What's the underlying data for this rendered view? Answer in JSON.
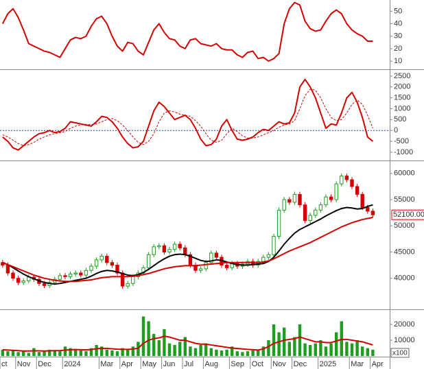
{
  "chart_data": [
    {
      "type": "line",
      "ylim": [
        4,
        59
      ],
      "yticks": [
        10,
        20,
        30,
        40,
        50
      ],
      "series": [
        {
          "color": "#d40000",
          "values": [
            40,
            48,
            52,
            45,
            35,
            24,
            22,
            20,
            18,
            17,
            15,
            13,
            20,
            27,
            29,
            28,
            30,
            38,
            44,
            46,
            40,
            30,
            22,
            18,
            25,
            24,
            18,
            15,
            25,
            35,
            40,
            33,
            28,
            27,
            22,
            20,
            27,
            28,
            24,
            23,
            22,
            24,
            20,
            19,
            19,
            15,
            13,
            17,
            18,
            12,
            13,
            10,
            12,
            16,
            40,
            52,
            57,
            55,
            42,
            36,
            34,
            35,
            42,
            48,
            51,
            48,
            40,
            35,
            32,
            30,
            26,
            26
          ]
        }
      ]
    },
    {
      "type": "line",
      "ylim": [
        -1350,
        2750
      ],
      "yticks": [
        -1000,
        -500,
        0,
        500,
        1000,
        1500,
        2000,
        2500
      ],
      "zero_line": true,
      "series": [
        {
          "color": "#d40000",
          "values": [
            -300,
            -500,
            -800,
            -900,
            -700,
            -500,
            -300,
            -150,
            -100,
            0,
            -100,
            -50,
            100,
            400,
            350,
            300,
            250,
            200,
            400,
            650,
            600,
            400,
            100,
            -300,
            -600,
            -800,
            -750,
            -500,
            200,
            900,
            1300,
            1100,
            800,
            500,
            600,
            700,
            500,
            100,
            -400,
            -700,
            -650,
            -400,
            200,
            500,
            0,
            -400,
            -450,
            -400,
            -300,
            -100,
            50,
            0,
            200,
            400,
            300,
            350,
            800,
            2000,
            2350,
            2000,
            1500,
            800,
            100,
            300,
            250,
            800,
            1500,
            1750,
            1300,
            600,
            -300,
            -500
          ]
        },
        {
          "color": "#d40000",
          "dashed": true,
          "values": [
            -200,
            -300,
            -450,
            -600,
            -700,
            -650,
            -550,
            -400,
            -300,
            -200,
            -150,
            -100,
            -50,
            100,
            200,
            250,
            280,
            270,
            300,
            400,
            500,
            550,
            450,
            250,
            0,
            -300,
            -550,
            -650,
            -500,
            -150,
            400,
            800,
            900,
            850,
            750,
            700,
            650,
            450,
            200,
            -150,
            -450,
            -550,
            -450,
            -150,
            100,
            -50,
            -250,
            -350,
            -350,
            -300,
            -200,
            -100,
            0,
            150,
            250,
            300,
            450,
            1000,
            1600,
            1900,
            1850,
            1500,
            1000,
            600,
            450,
            500,
            800,
            1200,
            1400,
            1200,
            700,
            100
          ]
        }
      ]
    },
    {
      "type": "candlestick",
      "ylim": [
        34200,
        62200
      ],
      "yticks": [
        40000,
        45000,
        50000,
        55000,
        60000
      ],
      "up_color": "#1e9e1e",
      "down_color": "#d40000",
      "open": [
        43000,
        42500,
        41000,
        40000,
        39200,
        39500,
        40200,
        39800,
        39000,
        38600,
        39200,
        39800,
        40500,
        40300,
        40800,
        41000,
        40600,
        41500,
        42300,
        43500,
        44200,
        43000,
        42500,
        41000,
        38500,
        39000,
        40300,
        41000,
        42000,
        44500,
        46000,
        46200,
        45000,
        45500,
        46500,
        45800,
        44500,
        42500,
        41500,
        41800,
        43000,
        44800,
        44000,
        42500,
        42000,
        42800,
        42300,
        42700,
        43200,
        42500,
        43200,
        44000,
        44500,
        48000,
        53000,
        55000,
        54500,
        56000,
        54000,
        51000,
        52000,
        53000,
        54000,
        55500,
        55000,
        58000,
        59500,
        58800,
        57500,
        56000,
        53500,
        52800
      ],
      "high": [
        43500,
        43000,
        41500,
        40500,
        40000,
        40700,
        40700,
        40300,
        39500,
        39700,
        40300,
        41000,
        41000,
        41300,
        41500,
        41500,
        42000,
        42800,
        44000,
        44700,
        44700,
        43500,
        43000,
        41500,
        39500,
        40800,
        41500,
        42500,
        45000,
        46500,
        46700,
        46700,
        46000,
        47000,
        47000,
        46300,
        45000,
        43000,
        42300,
        43500,
        45300,
        45300,
        44500,
        43000,
        43300,
        43300,
        43200,
        43700,
        43700,
        43700,
        44500,
        45000,
        48500,
        53500,
        55500,
        55500,
        56500,
        56500,
        54500,
        52500,
        53500,
        54500,
        56000,
        56000,
        58500,
        60000,
        60000,
        59300,
        58000,
        56500,
        54000,
        53300
      ],
      "low": [
        42000,
        40500,
        39500,
        38700,
        38700,
        39000,
        39300,
        38500,
        38100,
        38100,
        38700,
        39300,
        39800,
        39800,
        40300,
        40100,
        40100,
        41000,
        41800,
        43000,
        42500,
        42000,
        40500,
        38000,
        38000,
        38500,
        39800,
        40500,
        41500,
        44000,
        45500,
        44500,
        44500,
        45000,
        45300,
        44000,
        42000,
        41000,
        41000,
        41300,
        42500,
        43500,
        42000,
        41500,
        41500,
        41800,
        41800,
        42200,
        42000,
        42000,
        42700,
        43500,
        44000,
        47500,
        52500,
        54000,
        54000,
        53500,
        50500,
        50500,
        51500,
        52500,
        53500,
        54500,
        54500,
        57500,
        58300,
        57000,
        55500,
        53000,
        52300,
        51600
      ],
      "close": [
        42500,
        41000,
        40000,
        39200,
        39500,
        40200,
        39800,
        39000,
        38600,
        39200,
        39800,
        40500,
        40300,
        40800,
        41000,
        40600,
        41500,
        42300,
        43500,
        44200,
        43000,
        42500,
        41000,
        38500,
        39000,
        40300,
        41000,
        42000,
        44500,
        46000,
        46200,
        45000,
        45500,
        46500,
        45800,
        44500,
        42500,
        41500,
        41800,
        43000,
        44800,
        44000,
        42500,
        42000,
        42800,
        42300,
        42700,
        43200,
        42500,
        43200,
        44000,
        44500,
        48000,
        53000,
        55000,
        54500,
        56000,
        54000,
        51000,
        52000,
        53000,
        54000,
        55500,
        55000,
        58000,
        59500,
        58800,
        57500,
        56000,
        53500,
        52800,
        52100
      ],
      "series": [
        {
          "color": "#000000",
          "values": [
            43000,
            42600,
            42000,
            41400,
            40800,
            40300,
            39900,
            39500,
            39200,
            39000,
            38900,
            39000,
            39200,
            39400,
            39600,
            39800,
            40000,
            40400,
            40900,
            41300,
            41500,
            41400,
            41200,
            40900,
            40600,
            40500,
            40700,
            41100,
            41700,
            42400,
            43100,
            43700,
            44200,
            44500,
            44600,
            44500,
            44200,
            43800,
            43400,
            43200,
            43300,
            43500,
            43400,
            43100,
            42800,
            42600,
            42500,
            42500,
            42600,
            42700,
            42800,
            43200,
            44000,
            45200,
            46500,
            47600,
            48600,
            49300,
            49800,
            50300,
            50800,
            51300,
            51900,
            52400,
            52900,
            53300,
            53500,
            53400,
            53200,
            53300,
            53700,
            54000
          ]
        },
        {
          "color": "#d40000",
          "values": [
            43000,
            42600,
            42200,
            41800,
            41400,
            41000,
            40600,
            40300,
            40000,
            39800,
            39600,
            39500,
            39400,
            39400,
            39400,
            39500,
            39600,
            39700,
            39900,
            40100,
            40200,
            40300,
            40300,
            40300,
            40300,
            40400,
            40500,
            40700,
            40900,
            41200,
            41500,
            41800,
            42000,
            42200,
            42300,
            42400,
            42400,
            42400,
            42500,
            42600,
            42700,
            42800,
            42900,
            43000,
            43000,
            43000,
            43000,
            43000,
            43000,
            43000,
            43100,
            43300,
            43700,
            44200,
            44700,
            45200,
            45600,
            46000,
            46400,
            46800,
            47300,
            47800,
            48300,
            48800,
            49300,
            49800,
            50200,
            50600,
            50900,
            51200,
            51400,
            51600
          ]
        }
      ],
      "last_price": {
        "value": 52100,
        "label": "52100.00"
      }
    },
    {
      "type": "bar",
      "ylim": [
        -400,
        29100
      ],
      "yticks": [
        10000,
        20000
      ],
      "unit_label": "x100",
      "color": "#1e9e1e",
      "categories": [
        "ct",
        null,
        null,
        "Nov",
        null,
        null,
        null,
        "Dec",
        null,
        null,
        null,
        null,
        "2024",
        null,
        null,
        null,
        null,
        null,
        null,
        "Mar",
        null,
        null,
        null,
        "Apr",
        null,
        null,
        null,
        "May",
        null,
        null,
        null,
        "Jun",
        null,
        null,
        null,
        "Jul",
        null,
        null,
        null,
        "Aug",
        null,
        null,
        null,
        null,
        "Sep",
        null,
        null,
        null,
        "Oct",
        null,
        null,
        null,
        "Nov",
        null,
        null,
        null,
        "Dec",
        null,
        null,
        null,
        null,
        "2025",
        null,
        null,
        null,
        null,
        null,
        "Mar",
        null,
        null,
        null,
        "Apr"
      ],
      "values": [
        4000,
        3000,
        3500,
        2500,
        3000,
        2000,
        5000,
        2500,
        3000,
        4000,
        3500,
        3000,
        6000,
        5000,
        4000,
        3500,
        3000,
        5000,
        7000,
        6000,
        4000,
        3500,
        3000,
        5000,
        4000,
        6000,
        9000,
        25000,
        22000,
        14000,
        10000,
        17000,
        8000,
        7000,
        9000,
        12000,
        6000,
        5000,
        7000,
        8000,
        5000,
        4000,
        3500,
        4000,
        6000,
        3000,
        2500,
        3000,
        3500,
        4000,
        6000,
        10000,
        20000,
        15000,
        18000,
        9000,
        12000,
        20000,
        8000,
        7000,
        8000,
        10000,
        6000,
        8000,
        15000,
        22000,
        9000,
        8000,
        10000,
        6000,
        5000,
        4000
      ],
      "series": [
        {
          "color": "#d40000",
          "values": [
            4000,
            3800,
            3600,
            3400,
            3200,
            3200,
            3300,
            3300,
            3200,
            3300,
            3400,
            3400,
            3800,
            4000,
            4100,
            4000,
            3900,
            4100,
            4600,
            4900,
            4800,
            4600,
            4300,
            4200,
            4200,
            4400,
            5000,
            8000,
            10000,
            11000,
            11500,
            12500,
            12000,
            11000,
            10000,
            10000,
            9000,
            8000,
            7500,
            7500,
            7000,
            6500,
            6000,
            5500,
            5000,
            4800,
            4500,
            4200,
            4000,
            3800,
            4500,
            6000,
            8000,
            9000,
            10000,
            10500,
            11000,
            12000,
            11000,
            10000,
            9000,
            9000,
            8500,
            8500,
            9500,
            10500,
            10500,
            10000,
            9500,
            9000,
            8000,
            7000
          ]
        }
      ]
    }
  ]
}
